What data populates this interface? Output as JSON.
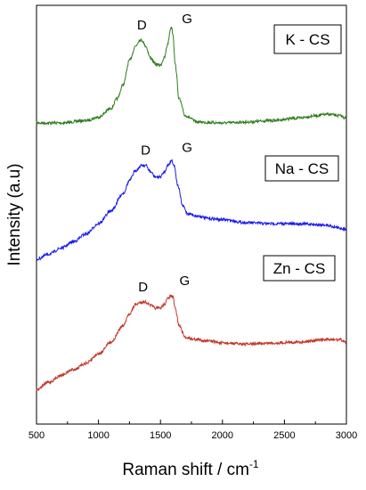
{
  "chart_data": {
    "type": "line",
    "xlabel": "Raman shift / cm",
    "xlabel_superscript": "-1",
    "ylabel": "Intensity (a.u)",
    "xlim": [
      500,
      3000
    ],
    "xticks": [
      500,
      1000,
      1500,
      2000,
      2500,
      3000
    ],
    "x_tick_labels": [
      "500",
      "1000",
      "1500",
      "2000",
      "2500",
      "3000"
    ],
    "y_tick_labels_shown": false,
    "grid": false,
    "series": [
      {
        "name": "K - CS",
        "color": "#2e7d1e",
        "x": [
          500,
          700,
          900,
          1000,
          1100,
          1150,
          1200,
          1250,
          1300,
          1330,
          1350,
          1380,
          1420,
          1460,
          1500,
          1530,
          1560,
          1580,
          1590,
          1600,
          1620,
          1650,
          1700,
          1800,
          2000,
          2200,
          2400,
          2600,
          2750,
          2850,
          2950,
          3000
        ],
        "y": [
          0.0,
          0.0,
          0.05,
          0.12,
          0.3,
          0.5,
          0.8,
          1.3,
          1.6,
          1.72,
          1.72,
          1.6,
          1.35,
          1.22,
          1.2,
          1.35,
          1.65,
          1.95,
          2.0,
          1.85,
          1.2,
          0.5,
          0.15,
          0.02,
          0.0,
          0.02,
          0.05,
          0.1,
          0.15,
          0.18,
          0.15,
          0.1
        ],
        "peak_labels": [
          {
            "text": "D",
            "x": 1350
          },
          {
            "text": "G",
            "x": 1600
          }
        ]
      },
      {
        "name": "Na - CS",
        "color": "#1a1aee",
        "x": [
          500,
          600,
          700,
          800,
          900,
          1000,
          1100,
          1200,
          1250,
          1300,
          1350,
          1380,
          1420,
          1460,
          1500,
          1530,
          1560,
          1590,
          1610,
          1640,
          1680,
          1720,
          1800,
          1900,
          2000,
          2200,
          2400,
          2600,
          2800,
          3000
        ],
        "y": [
          0.0,
          0.1,
          0.22,
          0.35,
          0.5,
          0.7,
          0.95,
          1.3,
          1.55,
          1.75,
          1.85,
          1.85,
          1.72,
          1.62,
          1.62,
          1.72,
          1.85,
          1.95,
          1.85,
          1.45,
          1.05,
          0.9,
          0.85,
          0.8,
          0.78,
          0.72,
          0.7,
          0.7,
          0.68,
          0.6
        ],
        "peak_labels": [
          {
            "text": "D",
            "x": 1380
          },
          {
            "text": "G",
            "x": 1600
          }
        ]
      },
      {
        "name": "Zn - CS",
        "color": "#c0392b",
        "x": [
          500,
          600,
          700,
          800,
          900,
          1000,
          1100,
          1200,
          1250,
          1300,
          1350,
          1380,
          1420,
          1460,
          1500,
          1530,
          1560,
          1580,
          1600,
          1620,
          1650,
          1700,
          1800,
          1900,
          2000,
          2200,
          2400,
          2600,
          2800,
          2950,
          3000
        ],
        "y": [
          0.0,
          0.15,
          0.3,
          0.42,
          0.55,
          0.75,
          1.0,
          1.35,
          1.6,
          1.8,
          1.85,
          1.85,
          1.78,
          1.72,
          1.72,
          1.8,
          1.92,
          1.98,
          1.95,
          1.7,
          1.35,
          1.1,
          1.05,
          1.02,
          0.98,
          0.96,
          0.98,
          1.0,
          1.05,
          1.05,
          1.0
        ],
        "peak_labels": [
          {
            "text": "D",
            "x": 1360
          },
          {
            "text": "G",
            "x": 1580
          }
        ]
      }
    ]
  }
}
